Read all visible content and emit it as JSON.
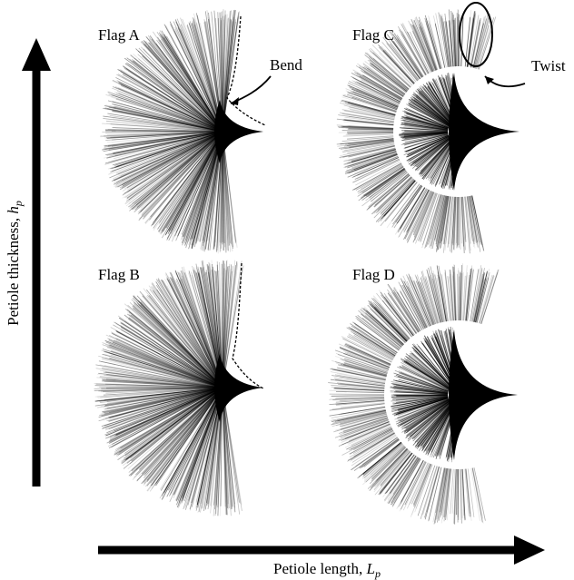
{
  "panels": [
    {
      "label": "Flag A"
    },
    {
      "label": "Flag B"
    },
    {
      "label": "Flag C"
    },
    {
      "label": "Flag D"
    }
  ],
  "annotations": {
    "bend": "Bend",
    "twist": "Twist"
  },
  "y_axis": {
    "text": "Petiole thickness, ",
    "symbol": "h",
    "subscript": "p"
  },
  "x_axis": {
    "text": "Petiole length, ",
    "symbol": "L",
    "subscript": "p"
  }
}
